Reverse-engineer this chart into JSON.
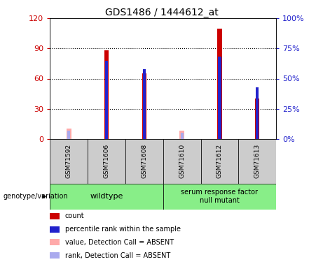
{
  "title": "GDS1486 / 1444612_at",
  "samples": [
    "GSM71592",
    "GSM71606",
    "GSM71608",
    "GSM71610",
    "GSM71612",
    "GSM71613"
  ],
  "count_values": [
    0,
    88,
    65,
    0,
    110,
    40
  ],
  "percentile_values": [
    0,
    65,
    58,
    0,
    68,
    43
  ],
  "absent_count_values": [
    10,
    0,
    0,
    8,
    0,
    0
  ],
  "absent_rank_values": [
    7,
    0,
    0,
    5,
    0,
    0
  ],
  "ylim_left": [
    0,
    120
  ],
  "ylim_right": [
    0,
    100
  ],
  "yticks_left": [
    0,
    30,
    60,
    90,
    120
  ],
  "yticks_right": [
    0,
    25,
    50,
    75,
    100
  ],
  "ytick_labels_left": [
    "0",
    "30",
    "60",
    "90",
    "120"
  ],
  "ytick_labels_right": [
    "0%",
    "25%",
    "50%",
    "75%",
    "100%"
  ],
  "color_count": "#cc0000",
  "color_percentile": "#2222cc",
  "color_absent_count": "#ffaaaa",
  "color_absent_rank": "#aaaaee",
  "legend_items": [
    {
      "label": "count",
      "color": "#cc0000"
    },
    {
      "label": "percentile rank within the sample",
      "color": "#2222cc"
    },
    {
      "label": "value, Detection Call = ABSENT",
      "color": "#ffaaaa"
    },
    {
      "label": "rank, Detection Call = ABSENT",
      "color": "#aaaaee"
    }
  ],
  "genotype_label": "genotype/variation",
  "plot_bg_color": "#ffffff",
  "label_color_left": "#cc0000",
  "label_color_right": "#2222cc",
  "gray_box_color": "#cccccc",
  "green_box_color": "#88ee88"
}
